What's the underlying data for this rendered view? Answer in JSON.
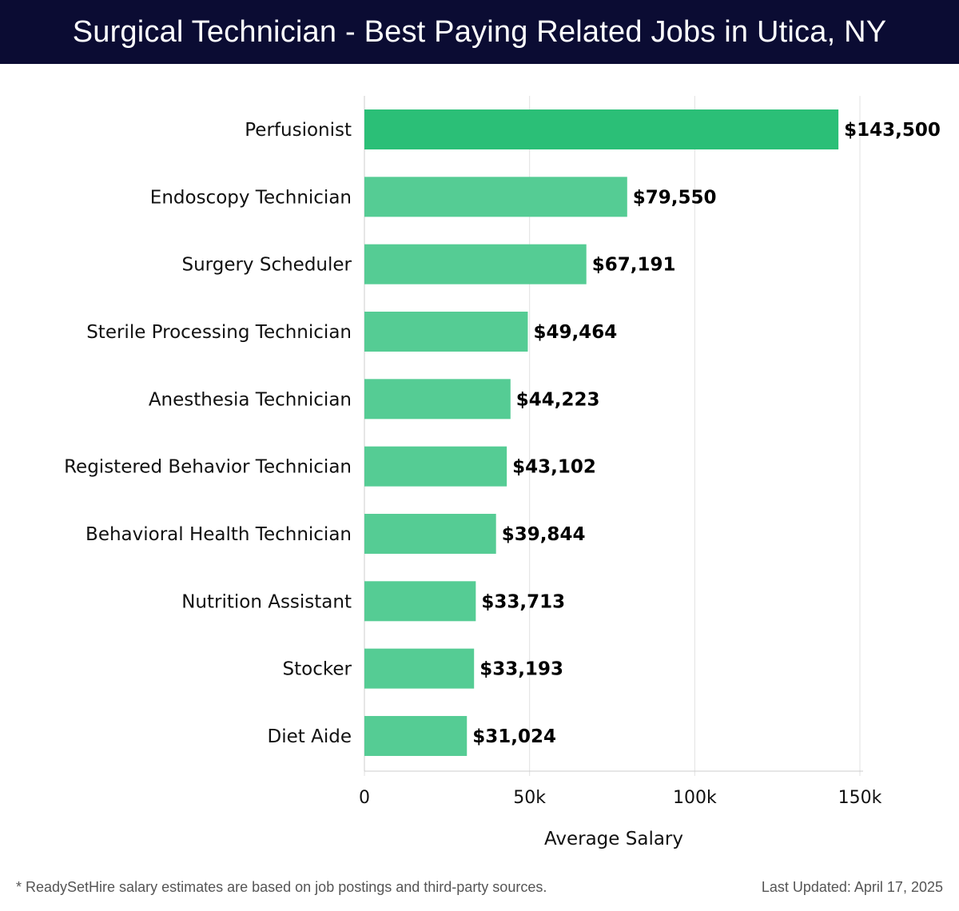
{
  "header": {
    "title": "Surgical Technician - Best Paying Related Jobs in Utica, NY"
  },
  "chart_data": {
    "type": "bar",
    "orientation": "horizontal",
    "title": "Surgical Technician - Best Paying Related Jobs in Utica, NY",
    "xlabel": "Average Salary",
    "ylabel": "",
    "xlim": [
      0,
      150000
    ],
    "ticks": [
      {
        "value": 0,
        "label": "0"
      },
      {
        "value": 50000,
        "label": "50k"
      },
      {
        "value": 100000,
        "label": "100k"
      },
      {
        "value": 150000,
        "label": "150k"
      }
    ],
    "categories": [
      "Perfusionist",
      "Endoscopy Technician",
      "Surgery Scheduler",
      "Sterile Processing Technician",
      "Anesthesia Technician",
      "Registered Behavior Technician",
      "Behavioral Health Technician",
      "Nutrition Assistant",
      "Stocker",
      "Diet Aide"
    ],
    "values": [
      143500,
      79550,
      67191,
      49464,
      44223,
      43102,
      39844,
      33713,
      33193,
      31024
    ],
    "value_labels": [
      "$143,500",
      "$79,550",
      "$67,191",
      "$49,464",
      "$44,223",
      "$43,102",
      "$39,844",
      "$33,713",
      "$33,193",
      "$31,024"
    ],
    "colors": {
      "top_bar": "#2bbf77",
      "bar": "#55cc94",
      "grid": "#e2e2e2",
      "axis": "#cccccc"
    },
    "grid": true
  },
  "footer": {
    "note": "* ReadySetHire salary estimates are based on job postings and third-party sources.",
    "updated": "Last Updated: April 17, 2025"
  }
}
